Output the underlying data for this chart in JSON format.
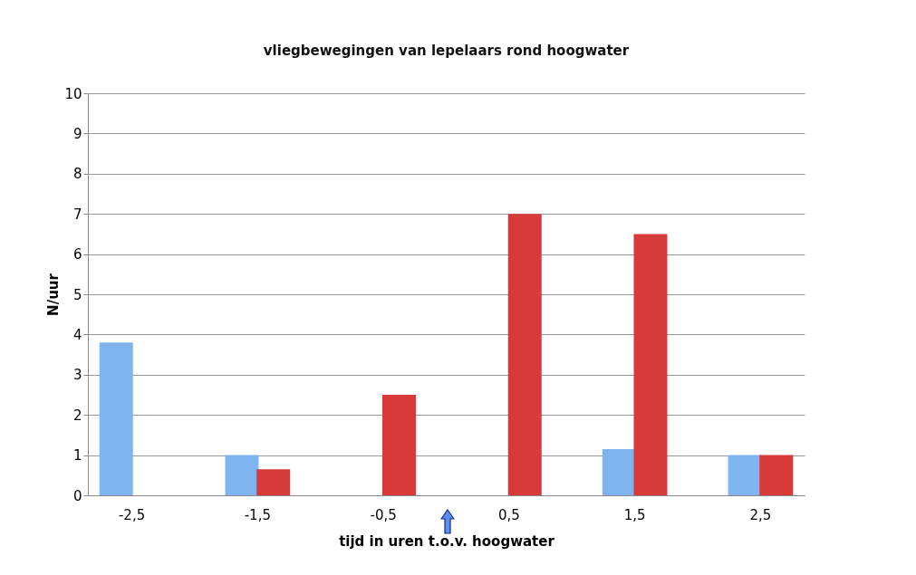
{
  "chart_data": {
    "type": "bar",
    "title": "vliegbewegingen van lepelaars rond hoogwater",
    "xlabel": "tijd in uren t.o.v. hoogwater",
    "ylabel": "N/uur",
    "categories": [
      "-2,5",
      "-1,5",
      "-0,5",
      "0,5",
      "1,5",
      "2,5"
    ],
    "series": [
      {
        "color": "#80b4f0",
        "values": [
          3.8,
          1,
          0,
          0,
          1.15,
          1
        ]
      },
      {
        "color": "#d83a3a",
        "values": [
          0,
          0.65,
          2.5,
          7,
          6.5,
          1
        ]
      }
    ],
    "ylim": [
      0,
      10
    ],
    "yticks": [
      0,
      1,
      2,
      3,
      4,
      5,
      6,
      7,
      8,
      9,
      10
    ],
    "grid": "y"
  }
}
